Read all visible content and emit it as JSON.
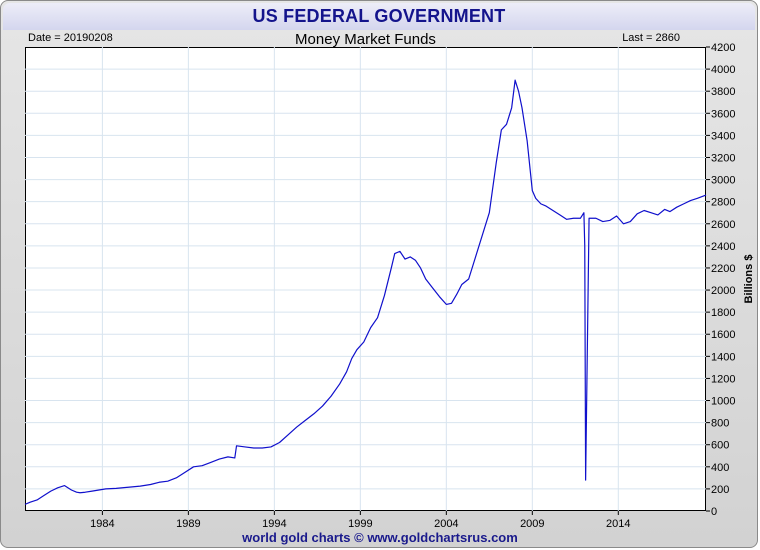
{
  "header": {
    "title": "US FEDERAL GOVERNMENT",
    "date_label": "Date = 20190208",
    "last_label": "Last = 2860"
  },
  "footer": {
    "credit": "world gold charts © www.goldchartsrus.com"
  },
  "colors": {
    "line": "#1010cc",
    "title": "#14148c",
    "grid": "#d8e4ef"
  },
  "chart_data": {
    "type": "line",
    "title": "Money Market Funds",
    "xlabel": "",
    "ylabel": "Billions $",
    "xlim": [
      1979.5,
      2019.1
    ],
    "ylim": [
      0,
      4200
    ],
    "xticks": [
      1984,
      1989,
      1994,
      1999,
      2004,
      2009,
      2014
    ],
    "yticks": [
      0,
      200,
      400,
      600,
      800,
      1000,
      1200,
      1400,
      1600,
      1800,
      2000,
      2200,
      2400,
      2600,
      2800,
      3000,
      3200,
      3400,
      3600,
      3800,
      4000,
      4200
    ],
    "grid": true,
    "y_axis_side": "right",
    "series": [
      {
        "x": [
          1979.5,
          1979.8,
          1980.2,
          1980.6,
          1981.0,
          1981.4,
          1981.8,
          1982.2,
          1982.5,
          1982.7,
          1983.0,
          1983.4,
          1983.8,
          1984.2,
          1984.8,
          1985.5,
          1986.2,
          1986.8,
          1987.3,
          1987.8,
          1988.3,
          1988.8,
          1989.3,
          1989.8,
          1990.3,
          1990.8,
          1991.3,
          1991.7,
          1991.8,
          1992.3,
          1992.8,
          1993.3,
          1993.8,
          1994.3,
          1994.8,
          1995.3,
          1995.8,
          1996.3,
          1996.8,
          1997.3,
          1997.8,
          1998.2,
          1998.5,
          1998.8,
          1999.2,
          1999.6,
          2000.0,
          2000.4,
          2000.8,
          2001.0,
          2001.3,
          2001.6,
          2001.9,
          2002.2,
          2002.5,
          2002.8,
          2003.2,
          2003.6,
          2004.0,
          2004.3,
          2004.6,
          2004.9,
          2005.3,
          2005.7,
          2006.1,
          2006.5,
          2006.9,
          2007.2,
          2007.5,
          2007.8,
          2008.0,
          2008.2,
          2008.4,
          2008.7,
          2009.0,
          2009.2,
          2009.5,
          2009.8,
          2010.2,
          2010.6,
          2011.0,
          2011.4,
          2011.8,
          2012.0,
          2012.05,
          2012.1,
          2012.3,
          2012.7,
          2013.1,
          2013.5,
          2013.9,
          2014.3,
          2014.7,
          2015.1,
          2015.5,
          2015.9,
          2016.3,
          2016.7,
          2017.0,
          2017.4,
          2017.8,
          2018.2,
          2018.6,
          2019.1
        ],
        "values": [
          60,
          80,
          100,
          140,
          180,
          210,
          230,
          190,
          170,
          165,
          170,
          180,
          190,
          200,
          205,
          215,
          225,
          240,
          260,
          270,
          300,
          350,
          400,
          410,
          440,
          470,
          490,
          480,
          590,
          580,
          570,
          570,
          580,
          620,
          690,
          760,
          820,
          880,
          950,
          1040,
          1150,
          1260,
          1380,
          1460,
          1530,
          1660,
          1750,
          1950,
          2200,
          2330,
          2350,
          2280,
          2300,
          2270,
          2200,
          2100,
          2020,
          1940,
          1870,
          1880,
          1960,
          2050,
          2100,
          2300,
          2500,
          2700,
          3150,
          3450,
          3500,
          3650,
          3900,
          3800,
          3650,
          3350,
          2900,
          2830,
          2780,
          2760,
          2720,
          2680,
          2640,
          2650,
          2650,
          2700,
          2400,
          280,
          2650,
          2650,
          2620,
          2630,
          2670,
          2600,
          2620,
          2690,
          2720,
          2700,
          2680,
          2730,
          2710,
          2750,
          2780,
          2810,
          2830,
          2860
        ]
      }
    ]
  }
}
